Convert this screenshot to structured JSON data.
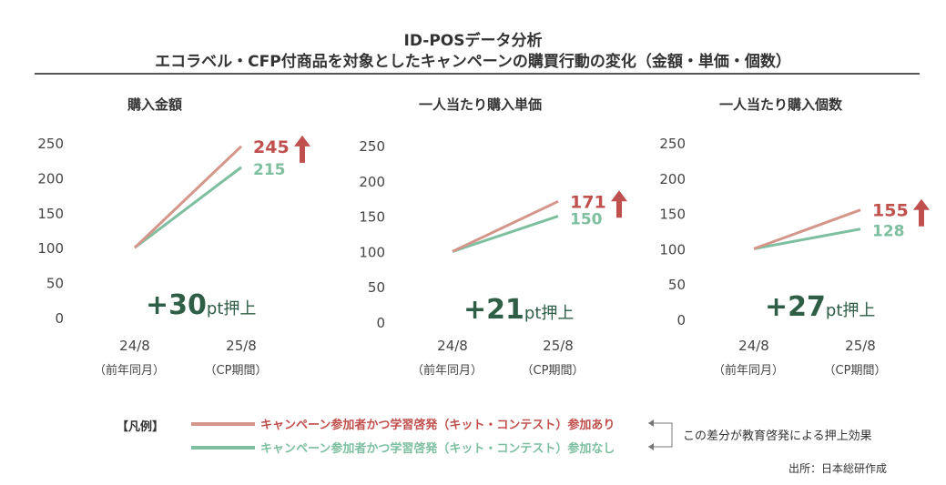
{
  "title": [
    "ID-POSデータ分析",
    "エコラベル・CFP付商品を対象としたキャンペーンの購買行動の変化（金額・単価・個数）"
  ],
  "chart_data": [
    {
      "type": "line",
      "title": "購入金額",
      "categories": [
        "24/8",
        "25/8"
      ],
      "category_sub": [
        "（前年同月）",
        "（CP期間）"
      ],
      "ylim": [
        0,
        250
      ],
      "yticks": [
        0,
        50,
        100,
        150,
        200,
        250
      ],
      "series": [
        {
          "name": "キャンペーン参加者かつ学習啓発（キット・コンテスト）参加あり",
          "values": [
            100,
            245
          ],
          "label": "245"
        },
        {
          "name": "キャンペーン参加者かつ学習啓発（キット・コンテスト）参加なし",
          "values": [
            100,
            215
          ],
          "label": "215"
        }
      ],
      "annotation": {
        "value": "+30",
        "unit": "pt押上"
      }
    },
    {
      "type": "line",
      "title": "一人当たり購入単価",
      "categories": [
        "24/8",
        "25/8"
      ],
      "category_sub": [
        "（前年同月）",
        "（CP期間）"
      ],
      "ylim": [
        0,
        250
      ],
      "yticks": [
        0,
        50,
        100,
        150,
        200,
        250
      ],
      "series": [
        {
          "name": "キャンペーン参加者かつ学習啓発（キット・コンテスト）参加あり",
          "values": [
            100,
            171
          ],
          "label": "171"
        },
        {
          "name": "キャンペーン参加者かつ学習啓発（キット・コンテスト）参加なし",
          "values": [
            100,
            150
          ],
          "label": "150"
        }
      ],
      "annotation": {
        "value": "+21",
        "unit": "pt押上"
      }
    },
    {
      "type": "line",
      "title": "一人当たり購入個数",
      "categories": [
        "24/8",
        "25/8"
      ],
      "category_sub": [
        "（前年同月）",
        "（CP期間）"
      ],
      "ylim": [
        0,
        250
      ],
      "yticks": [
        0,
        50,
        100,
        150,
        200,
        250
      ],
      "series": [
        {
          "name": "キャンペーン参加者かつ学習啓発（キット・コンテスト）参加あり",
          "values": [
            100,
            155
          ],
          "label": "155"
        },
        {
          "name": "キャンペーン参加者かつ学習啓発（キット・コンテスト）参加なし",
          "values": [
            100,
            128
          ],
          "label": "128"
        }
      ],
      "annotation": {
        "value": "+27",
        "unit": "pt押上"
      }
    }
  ],
  "legend": {
    "label": "【凡例】",
    "items": [
      "キャンペーン参加者かつ学習啓発（キット・コンテスト）参加あり",
      "キャンペーン参加者かつ学習啓発（キット・コンテスト）参加なし"
    ],
    "note": "この差分が教育啓発による押上効果"
  },
  "source": "出所：日本総研作成",
  "colors": {
    "with": "#d4968a",
    "without": "#7dbf9f",
    "with_text": "#c0504d",
    "without_text": "#7dbf9f",
    "arrow": "#c0504d",
    "annotation": "#2e5e45"
  }
}
